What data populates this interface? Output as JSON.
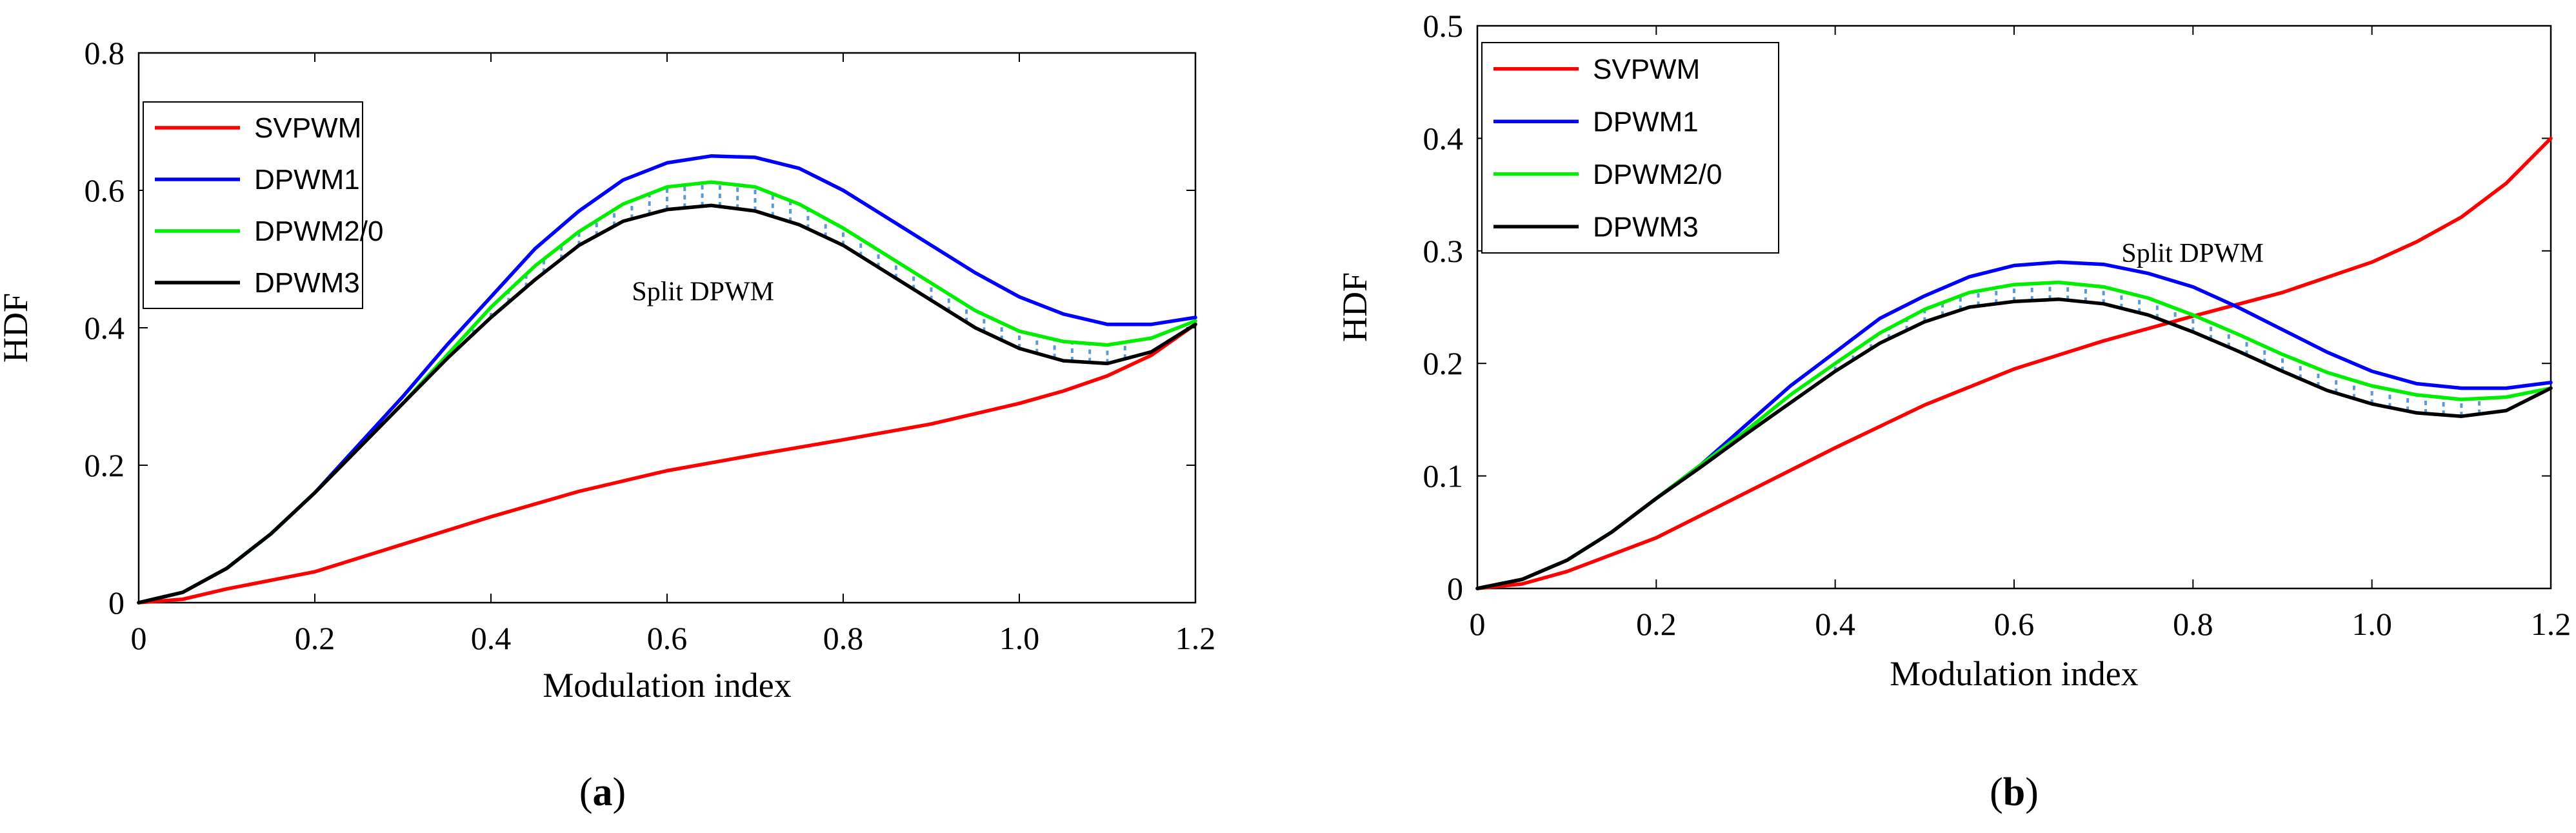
{
  "chart_data": [
    {
      "type": "line",
      "panel": "a",
      "caption": {
        "open": "(",
        "letter": "a",
        "close": ")"
      },
      "xlabel": "Modulation index",
      "ylabel": "HDF",
      "xlim": [
        0,
        1.2
      ],
      "ylim": [
        0,
        0.8
      ],
      "xticks": [
        0,
        0.2,
        0.4,
        0.6,
        0.8,
        1.0,
        1.2
      ],
      "xtick_labels": [
        "0",
        "0.2",
        "0.4",
        "0.6",
        "0.8",
        "1.0",
        "1.2"
      ],
      "yticks": [
        0,
        0.2,
        0.4,
        0.6,
        0.8
      ],
      "ytick_labels": [
        "0",
        "0.2",
        "0.4",
        "0.6",
        "0.8"
      ],
      "legend": "top-left",
      "annotation": {
        "text": "Split DPWM",
        "x": 0.56,
        "y": 0.44
      },
      "shaded_region": {
        "between": [
          "DPWM3",
          "DPWM2/0"
        ],
        "x_range": [
          0.38,
          1.12
        ],
        "color": "#5b9bd5"
      },
      "series": [
        {
          "name": "SVPWM",
          "color": "#ff0000",
          "x": [
            0,
            0.05,
            0.1,
            0.2,
            0.3,
            0.4,
            0.5,
            0.6,
            0.7,
            0.8,
            0.9,
            1.0,
            1.05,
            1.1,
            1.15,
            1.2
          ],
          "y": [
            0,
            0.005,
            0.02,
            0.045,
            0.085,
            0.125,
            0.162,
            0.192,
            0.215,
            0.237,
            0.26,
            0.29,
            0.308,
            0.33,
            0.36,
            0.405
          ]
        },
        {
          "name": "DPWM1",
          "color": "#0000ff",
          "x": [
            0,
            0.05,
            0.1,
            0.15,
            0.2,
            0.25,
            0.3,
            0.35,
            0.4,
            0.45,
            0.5,
            0.55,
            0.6,
            0.65,
            0.7,
            0.75,
            0.8,
            0.85,
            0.9,
            0.95,
            1.0,
            1.05,
            1.1,
            1.15,
            1.2
          ],
          "y": [
            0,
            0.015,
            0.05,
            0.1,
            0.16,
            0.23,
            0.3,
            0.375,
            0.445,
            0.515,
            0.57,
            0.615,
            0.64,
            0.65,
            0.648,
            0.632,
            0.6,
            0.56,
            0.52,
            0.48,
            0.445,
            0.42,
            0.405,
            0.405,
            0.415
          ]
        },
        {
          "name": "DPWM2/0",
          "color": "#00ee00",
          "x": [
            0,
            0.05,
            0.1,
            0.15,
            0.2,
            0.25,
            0.3,
            0.35,
            0.4,
            0.45,
            0.5,
            0.55,
            0.6,
            0.65,
            0.7,
            0.75,
            0.8,
            0.85,
            0.9,
            0.95,
            1.0,
            1.05,
            1.1,
            1.15,
            1.2
          ],
          "y": [
            0,
            0.015,
            0.05,
            0.1,
            0.16,
            0.225,
            0.29,
            0.36,
            0.43,
            0.49,
            0.54,
            0.58,
            0.605,
            0.612,
            0.605,
            0.58,
            0.545,
            0.505,
            0.465,
            0.425,
            0.395,
            0.38,
            0.375,
            0.385,
            0.41
          ]
        },
        {
          "name": "DPWM3",
          "color": "#000000",
          "x": [
            0,
            0.05,
            0.1,
            0.15,
            0.2,
            0.25,
            0.3,
            0.35,
            0.4,
            0.45,
            0.5,
            0.55,
            0.6,
            0.65,
            0.7,
            0.75,
            0.8,
            0.85,
            0.9,
            0.95,
            1.0,
            1.05,
            1.1,
            1.15,
            1.2
          ],
          "y": [
            0,
            0.015,
            0.05,
            0.1,
            0.16,
            0.225,
            0.29,
            0.355,
            0.415,
            0.47,
            0.52,
            0.555,
            0.572,
            0.578,
            0.57,
            0.55,
            0.52,
            0.48,
            0.44,
            0.4,
            0.37,
            0.352,
            0.348,
            0.365,
            0.405
          ]
        }
      ]
    },
    {
      "type": "line",
      "panel": "b",
      "caption": {
        "open": "(",
        "letter": "b",
        "close": ")"
      },
      "xlabel": "Modulation index",
      "ylabel": "HDF",
      "xlim": [
        0,
        1.2
      ],
      "ylim": [
        0,
        0.5
      ],
      "xticks": [
        0,
        0.2,
        0.4,
        0.6,
        0.8,
        1.0,
        1.2
      ],
      "xtick_labels": [
        "0",
        "0.2",
        "0.4",
        "0.6",
        "0.8",
        "1.0",
        "1.2"
      ],
      "yticks": [
        0,
        0.1,
        0.2,
        0.3,
        0.4,
        0.5
      ],
      "ytick_labels": [
        "0",
        "0.1",
        "0.2",
        "0.3",
        "0.4",
        "0.5"
      ],
      "legend": "top-left",
      "annotation": {
        "text": "Split DPWM",
        "x": 0.72,
        "y": 0.29
      },
      "shaded_region": {
        "between": [
          "DPWM3",
          "DPWM2/0"
        ],
        "x_range": [
          0.4,
          1.13
        ],
        "color": "#5b9bd5"
      },
      "series": [
        {
          "name": "SVPWM",
          "color": "#ff0000",
          "x": [
            0,
            0.05,
            0.1,
            0.15,
            0.2,
            0.3,
            0.4,
            0.5,
            0.6,
            0.7,
            0.8,
            0.9,
            1.0,
            1.05,
            1.1,
            1.15,
            1.2
          ],
          "y": [
            0,
            0.004,
            0.015,
            0.03,
            0.045,
            0.085,
            0.125,
            0.163,
            0.195,
            0.22,
            0.242,
            0.263,
            0.29,
            0.308,
            0.33,
            0.36,
            0.4
          ]
        },
        {
          "name": "DPWM1",
          "color": "#0000ff",
          "x": [
            0,
            0.05,
            0.1,
            0.15,
            0.2,
            0.25,
            0.3,
            0.35,
            0.4,
            0.45,
            0.5,
            0.55,
            0.6,
            0.65,
            0.7,
            0.75,
            0.8,
            0.85,
            0.9,
            0.95,
            1.0,
            1.05,
            1.1,
            1.15,
            1.2
          ],
          "y": [
            0,
            0.008,
            0.025,
            0.05,
            0.08,
            0.11,
            0.145,
            0.18,
            0.21,
            0.24,
            0.26,
            0.277,
            0.287,
            0.29,
            0.288,
            0.28,
            0.268,
            0.25,
            0.23,
            0.21,
            0.193,
            0.182,
            0.178,
            0.178,
            0.183
          ]
        },
        {
          "name": "DPWM2/0",
          "color": "#00ee00",
          "x": [
            0,
            0.05,
            0.1,
            0.15,
            0.2,
            0.25,
            0.3,
            0.35,
            0.4,
            0.45,
            0.5,
            0.55,
            0.6,
            0.65,
            0.7,
            0.75,
            0.8,
            0.85,
            0.9,
            0.95,
            1.0,
            1.05,
            1.1,
            1.15,
            1.2
          ],
          "y": [
            0,
            0.008,
            0.025,
            0.05,
            0.08,
            0.11,
            0.14,
            0.172,
            0.2,
            0.227,
            0.248,
            0.263,
            0.27,
            0.272,
            0.268,
            0.258,
            0.243,
            0.226,
            0.208,
            0.192,
            0.18,
            0.172,
            0.168,
            0.17,
            0.178
          ]
        },
        {
          "name": "DPWM3",
          "color": "#000000",
          "x": [
            0,
            0.05,
            0.1,
            0.15,
            0.2,
            0.25,
            0.3,
            0.35,
            0.4,
            0.45,
            0.5,
            0.55,
            0.6,
            0.65,
            0.7,
            0.75,
            0.8,
            0.85,
            0.9,
            0.95,
            1.0,
            1.05,
            1.1,
            1.15,
            1.2
          ],
          "y": [
            0,
            0.008,
            0.025,
            0.05,
            0.08,
            0.108,
            0.137,
            0.165,
            0.193,
            0.218,
            0.237,
            0.25,
            0.255,
            0.257,
            0.253,
            0.243,
            0.228,
            0.211,
            0.193,
            0.176,
            0.164,
            0.156,
            0.153,
            0.158,
            0.178
          ]
        }
      ]
    }
  ]
}
